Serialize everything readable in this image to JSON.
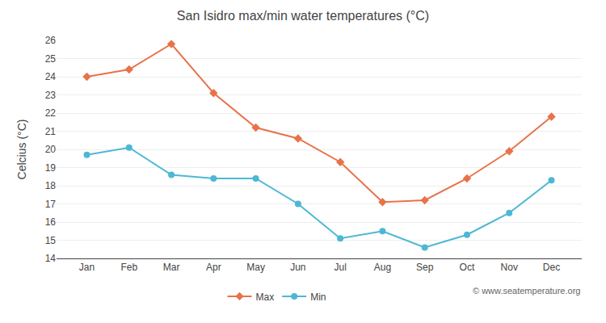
{
  "chart_data": {
    "type": "line",
    "title": "San Isidro max/min water temperatures (°C)",
    "ylabel": "Celcius (°C)",
    "categories": [
      "Jan",
      "Feb",
      "Mar",
      "Apr",
      "May",
      "Jun",
      "Jul",
      "Aug",
      "Sep",
      "Oct",
      "Nov",
      "Dec"
    ],
    "series": [
      {
        "name": "Max",
        "color": "#e8724a",
        "marker": "diamond",
        "values": [
          24.0,
          24.4,
          25.8,
          23.1,
          21.2,
          20.6,
          19.3,
          17.1,
          17.2,
          18.4,
          19.9,
          21.8
        ]
      },
      {
        "name": "Min",
        "color": "#4db8d4",
        "marker": "circle",
        "values": [
          19.7,
          20.1,
          18.6,
          18.4,
          18.4,
          17.0,
          15.1,
          15.5,
          14.6,
          15.3,
          16.5,
          18.3
        ]
      }
    ],
    "ylim": [
      14,
      26
    ],
    "yticks": [
      14,
      15,
      16,
      17,
      18,
      19,
      20,
      21,
      22,
      23,
      24,
      25,
      26
    ],
    "grid": true,
    "legend": "bottom",
    "annotations": [
      "© www.seatemperature.org"
    ]
  }
}
